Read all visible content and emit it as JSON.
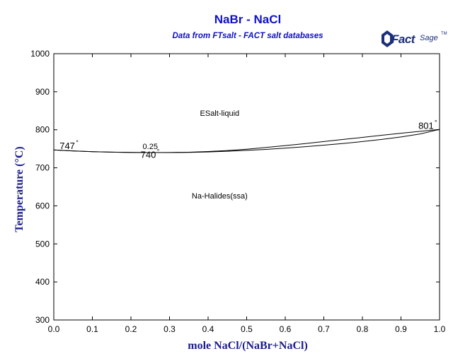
{
  "chart_data": {
    "type": "line",
    "title": "NaBr - NaCl",
    "subtitle": "Data from FTsalt - FACT salt databases",
    "xlabel": "mole NaCl/(NaBr+NaCl)",
    "ylabel": "Temperature (°C)",
    "xlim": [
      0,
      1
    ],
    "ylim": [
      300,
      1000
    ],
    "x_ticks": [
      "0.0",
      "0.1",
      "0.2",
      "0.3",
      "0.4",
      "0.5",
      "0.6",
      "0.7",
      "0.8",
      "0.9",
      "1.0"
    ],
    "y_ticks": [
      "300",
      "400",
      "500",
      "600",
      "700",
      "800",
      "900",
      "1000"
    ],
    "grid": false,
    "series": [
      {
        "x": [
          0,
          0.05,
          0.1,
          0.15,
          0.2,
          0.25,
          0.3,
          0.35,
          0.4,
          0.45,
          0.5,
          0.55,
          0.6,
          0.65,
          0.7,
          0.75,
          0.8,
          0.85,
          0.9,
          0.95,
          1.0
        ],
        "y": [
          747,
          744.5,
          742.5,
          741.2,
          740.4,
          740,
          740.2,
          741,
          742.8,
          745.5,
          749,
          753.5,
          758.5,
          763.5,
          769,
          774.5,
          780,
          785.5,
          791,
          796,
          801
        ]
      },
      {
        "x": [
          0,
          0.05,
          0.1,
          0.15,
          0.2,
          0.25,
          0.3,
          0.35,
          0.4,
          0.45,
          0.5,
          0.55,
          0.6,
          0.65,
          0.7,
          0.75,
          0.8,
          0.85,
          0.9,
          0.95,
          1.0
        ],
        "y": [
          747,
          744.4,
          742.4,
          741.1,
          740.3,
          740,
          740.1,
          740.6,
          741.7,
          743.5,
          745.8,
          748.5,
          751.8,
          755.5,
          759.5,
          764,
          769,
          774.5,
          781,
          789,
          801
        ]
      }
    ],
    "annotations": [
      {
        "text": "ESalt-liquid",
        "x": 0.43,
        "y": 837
      },
      {
        "text": "Na-Halides(ssa)",
        "x": 0.43,
        "y": 619
      },
      {
        "text": "747",
        "x": 0.035,
        "y": 749,
        "degree": "°"
      },
      {
        "text": "0.25",
        "x": 0.25,
        "y": 749
      },
      {
        "text": "740",
        "x": 0.245,
        "y": 726,
        "degree": "°"
      },
      {
        "text": "801",
        "x": 0.965,
        "y": 802,
        "degree": "°"
      }
    ]
  }
}
